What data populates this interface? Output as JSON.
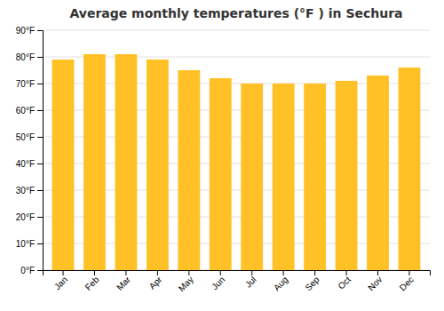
{
  "chart_data": {
    "type": "bar",
    "title": "Average monthly temperatures (°F ) in Sechura",
    "categories": [
      "Jan",
      "Feb",
      "Mar",
      "Apr",
      "May",
      "Jun",
      "Jul",
      "Aug",
      "Sep",
      "Oct",
      "Nov",
      "Dec"
    ],
    "values": [
      79,
      81,
      81,
      79,
      75,
      72,
      70,
      70,
      70,
      71,
      73,
      76
    ],
    "color": "#FFC125",
    "ylim": [
      0,
      90
    ],
    "yticks": [
      {
        "value": 0,
        "label": "0°F"
      },
      {
        "value": 10,
        "label": "10°F"
      },
      {
        "value": 20,
        "label": "20°F"
      },
      {
        "value": 30,
        "label": "30°F"
      },
      {
        "value": 40,
        "label": "40°F"
      },
      {
        "value": 50,
        "label": "50°F"
      },
      {
        "value": 60,
        "label": "60°F"
      },
      {
        "value": 70,
        "label": "70°F"
      },
      {
        "value": 80,
        "label": "80°F"
      },
      {
        "value": 90,
        "label": "90°F"
      }
    ],
    "grid": true
  }
}
